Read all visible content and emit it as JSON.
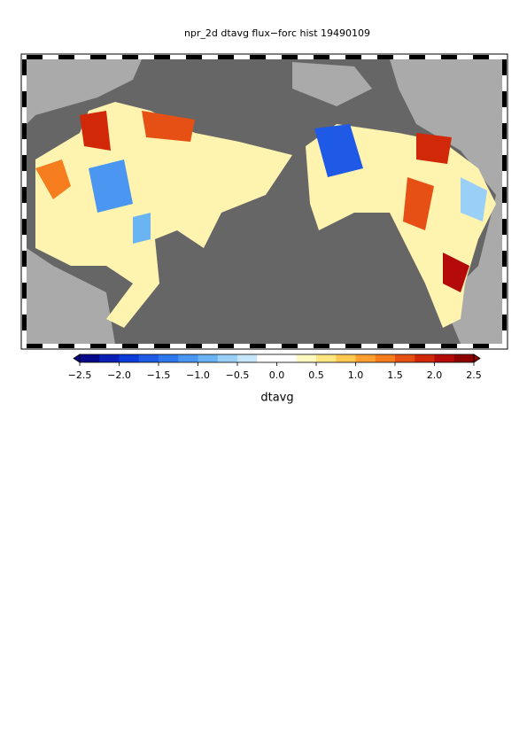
{
  "title": "npr_2d dtavg flux−forc hist 19490109",
  "colorbar": {
    "label": "dtavg",
    "lim": [
      -2.5,
      2.5
    ],
    "ticks": [
      {
        "value": -2.5,
        "label": "−2.5"
      },
      {
        "value": -2,
        "label": "−2.0"
      },
      {
        "value": -1.5,
        "label": "−1.5"
      },
      {
        "value": -1,
        "label": "−1.0"
      },
      {
        "value": -0.5,
        "label": "−0.5"
      },
      {
        "value": 0,
        "label": "0.0"
      },
      0.5,
      {
        "value": 1,
        "label": "1.0"
      },
      1.5,
      {
        "value": 2,
        "label": "2.0"
      },
      2.5
    ],
    "colors": [
      "#08088a",
      "#0a1fb5",
      "#0a3cdc",
      "#1e5ae6",
      "#2e78ee",
      "#4a96f0",
      "#6ab4f4",
      "#9ad0f8",
      "#c8e6fa",
      "#ffffff",
      "#ffffff",
      "#fff8c0",
      "#ffe680",
      "#ffc850",
      "#ffa030",
      "#f57d1e",
      "#e65014",
      "#d2280a",
      "#b40a0a",
      "#8c0000"
    ]
  }
}
